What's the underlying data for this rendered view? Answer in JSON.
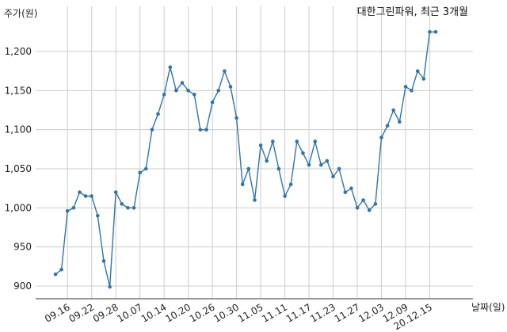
{
  "chart_data": {
    "type": "line",
    "title": "대한그린파워, 최근 3개월",
    "ylabel": "주가(원)",
    "xlabel": "날짜(일)",
    "ylim": [
      880,
      1240
    ],
    "yticks": [
      900,
      950,
      1000,
      1050,
      1100,
      1150,
      1200
    ],
    "ytick_labels": [
      "900",
      "950",
      "1,000",
      "1,050",
      "1,100",
      "1,150",
      "1,200"
    ],
    "xticks": [
      "2020-09-16",
      "2020-09-22",
      "2020-09-28",
      "2020-10-07",
      "2020-10-14",
      "2020-10-20",
      "2020-10-26",
      "2020-10-30",
      "2020-11-05",
      "2020-11-11",
      "2020-11-17",
      "2020-11-23",
      "2020-11-27",
      "2020-12-03",
      "2020-12-09",
      "2020-12-15"
    ],
    "xtick_labels": [
      "09.16",
      "09.22",
      "09.28",
      "10.07",
      "10.14",
      "10.20",
      "10.26",
      "10.30",
      "11.05",
      "11.11",
      "11.17",
      "11.23",
      "11.27",
      "12.03",
      "12.09",
      "20.12.15"
    ],
    "grid": true,
    "line_color": "#2e75ab",
    "x": [
      "2020-09-14",
      "2020-09-15",
      "2020-09-16",
      "2020-09-17",
      "2020-09-18",
      "2020-09-21",
      "2020-09-22",
      "2020-09-23",
      "2020-09-24",
      "2020-09-25",
      "2020-09-28",
      "2020-09-29",
      "2020-10-05",
      "2020-10-06",
      "2020-10-07",
      "2020-10-08",
      "2020-10-12",
      "2020-10-13",
      "2020-10-14",
      "2020-10-15",
      "2020-10-16",
      "2020-10-19",
      "2020-10-20",
      "2020-10-21",
      "2020-10-22",
      "2020-10-23",
      "2020-10-26",
      "2020-10-27",
      "2020-10-28",
      "2020-10-29",
      "2020-10-30",
      "2020-11-02",
      "2020-11-03",
      "2020-11-04",
      "2020-11-05",
      "2020-11-06",
      "2020-11-09",
      "2020-11-10",
      "2020-11-11",
      "2020-11-12",
      "2020-11-13",
      "2020-11-16",
      "2020-11-17",
      "2020-11-18",
      "2020-11-19",
      "2020-11-20",
      "2020-11-23",
      "2020-11-24",
      "2020-11-25",
      "2020-11-26",
      "2020-11-27",
      "2020-11-30",
      "2020-12-01",
      "2020-12-02",
      "2020-12-03",
      "2020-12-04",
      "2020-12-07",
      "2020-12-08",
      "2020-12-09",
      "2020-12-10",
      "2020-12-11",
      "2020-12-14",
      "2020-12-15",
      "2020-12-16"
    ],
    "series": [
      {
        "values": [
          915,
          921,
          996,
          1000,
          1020,
          1015,
          1015,
          990,
          932,
          899,
          1020,
          1005,
          1000,
          1000,
          1045,
          1050,
          1100,
          1120,
          1145,
          1180,
          1150,
          1160,
          1150,
          1145,
          1100,
          1100,
          1135,
          1150,
          1175,
          1155,
          1115,
          1030,
          1050,
          1010,
          1080,
          1060,
          1085,
          1050,
          1015,
          1030,
          1085,
          1070,
          1055,
          1085,
          1055,
          1060,
          1040,
          1050,
          1020,
          1025,
          1000,
          1010,
          997,
          1005,
          1090,
          1105,
          1125,
          1110,
          1155,
          1150,
          1175,
          1165,
          1225,
          1225
        ]
      }
    ]
  }
}
